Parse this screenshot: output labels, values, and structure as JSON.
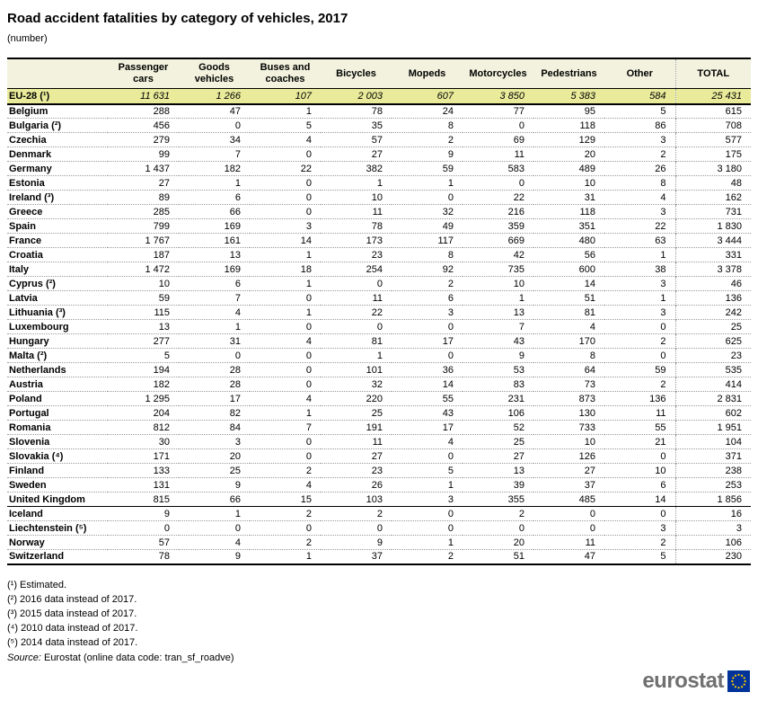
{
  "title": "Road accident fatalities by category of vehicles, 2017",
  "subtitle": "(number)",
  "colors": {
    "header_bg": "#F2F2DE",
    "aggregate_row_bg": "#E9EB9B",
    "flag_blue": "#003399",
    "star_yellow": "#FFCC00",
    "logo_gray": "#707070"
  },
  "chart_data": {
    "type": "table",
    "title": "Road accident fatalities by category of vehicles, 2017",
    "unit": "number",
    "columns": [
      "Passenger cars",
      "Goods vehicles",
      "Buses and coaches",
      "Bicycles",
      "Mopeds",
      "Motorcycles",
      "Pedestrians",
      "Other",
      "TOTAL"
    ],
    "aggregate": {
      "label": "EU-28 (¹)",
      "values": [
        11631,
        1266,
        107,
        2003,
        607,
        3850,
        5383,
        584,
        25431
      ]
    },
    "rows": [
      {
        "label": "Belgium",
        "efta": false,
        "values": [
          288,
          47,
          1,
          78,
          24,
          77,
          95,
          5,
          615
        ]
      },
      {
        "label": "Bulgaria (²)",
        "efta": false,
        "values": [
          456,
          0,
          5,
          35,
          8,
          0,
          118,
          86,
          708
        ]
      },
      {
        "label": "Czechia",
        "efta": false,
        "values": [
          279,
          34,
          4,
          57,
          2,
          69,
          129,
          3,
          577
        ]
      },
      {
        "label": "Denmark",
        "efta": false,
        "values": [
          99,
          7,
          0,
          27,
          9,
          11,
          20,
          2,
          175
        ]
      },
      {
        "label": "Germany",
        "efta": false,
        "values": [
          1437,
          182,
          22,
          382,
          59,
          583,
          489,
          26,
          3180
        ]
      },
      {
        "label": "Estonia",
        "efta": false,
        "values": [
          27,
          1,
          0,
          1,
          1,
          0,
          10,
          8,
          48
        ]
      },
      {
        "label": "Ireland (³)",
        "efta": false,
        "values": [
          89,
          6,
          0,
          10,
          0,
          22,
          31,
          4,
          162
        ]
      },
      {
        "label": "Greece",
        "efta": false,
        "values": [
          285,
          66,
          0,
          11,
          32,
          216,
          118,
          3,
          731
        ]
      },
      {
        "label": "Spain",
        "efta": false,
        "values": [
          799,
          169,
          3,
          78,
          49,
          359,
          351,
          22,
          1830
        ]
      },
      {
        "label": "France",
        "efta": false,
        "values": [
          1767,
          161,
          14,
          173,
          117,
          669,
          480,
          63,
          3444
        ]
      },
      {
        "label": "Croatia",
        "efta": false,
        "values": [
          187,
          13,
          1,
          23,
          8,
          42,
          56,
          1,
          331
        ]
      },
      {
        "label": "Italy",
        "efta": false,
        "values": [
          1472,
          169,
          18,
          254,
          92,
          735,
          600,
          38,
          3378
        ]
      },
      {
        "label": "Cyprus (²)",
        "efta": false,
        "values": [
          10,
          6,
          1,
          0,
          2,
          10,
          14,
          3,
          46
        ]
      },
      {
        "label": "Latvia",
        "efta": false,
        "values": [
          59,
          7,
          0,
          11,
          6,
          1,
          51,
          1,
          136
        ]
      },
      {
        "label": "Lithuania (³)",
        "efta": false,
        "values": [
          115,
          4,
          1,
          22,
          3,
          13,
          81,
          3,
          242
        ]
      },
      {
        "label": "Luxembourg",
        "efta": false,
        "values": [
          13,
          1,
          0,
          0,
          0,
          7,
          4,
          0,
          25
        ]
      },
      {
        "label": "Hungary",
        "efta": false,
        "values": [
          277,
          31,
          4,
          81,
          17,
          43,
          170,
          2,
          625
        ]
      },
      {
        "label": "Malta (²)",
        "efta": false,
        "values": [
          5,
          0,
          0,
          1,
          0,
          9,
          8,
          0,
          23
        ]
      },
      {
        "label": "Netherlands",
        "efta": false,
        "values": [
          194,
          28,
          0,
          101,
          36,
          53,
          64,
          59,
          535
        ]
      },
      {
        "label": "Austria",
        "efta": false,
        "values": [
          182,
          28,
          0,
          32,
          14,
          83,
          73,
          2,
          414
        ]
      },
      {
        "label": "Poland",
        "efta": false,
        "values": [
          1295,
          17,
          4,
          220,
          55,
          231,
          873,
          136,
          2831
        ]
      },
      {
        "label": "Portugal",
        "efta": false,
        "values": [
          204,
          82,
          1,
          25,
          43,
          106,
          130,
          11,
          602
        ]
      },
      {
        "label": "Romania",
        "efta": false,
        "values": [
          812,
          84,
          7,
          191,
          17,
          52,
          733,
          55,
          1951
        ]
      },
      {
        "label": "Slovenia",
        "efta": false,
        "values": [
          30,
          3,
          0,
          11,
          4,
          25,
          10,
          21,
          104
        ]
      },
      {
        "label": "Slovakia (⁴)",
        "efta": false,
        "values": [
          171,
          20,
          0,
          27,
          0,
          27,
          126,
          0,
          371
        ]
      },
      {
        "label": "Finland",
        "efta": false,
        "values": [
          133,
          25,
          2,
          23,
          5,
          13,
          27,
          10,
          238
        ]
      },
      {
        "label": "Sweden",
        "efta": false,
        "values": [
          131,
          9,
          4,
          26,
          1,
          39,
          37,
          6,
          253
        ]
      },
      {
        "label": "United Kingdom",
        "efta": false,
        "values": [
          815,
          66,
          15,
          103,
          3,
          355,
          485,
          14,
          1856
        ]
      },
      {
        "label": "Iceland",
        "efta": true,
        "values": [
          9,
          1,
          2,
          2,
          0,
          2,
          0,
          0,
          16
        ]
      },
      {
        "label": "Liechtenstein (⁵)",
        "efta": true,
        "values": [
          0,
          0,
          0,
          0,
          0,
          0,
          0,
          3,
          3
        ]
      },
      {
        "label": "Norway",
        "efta": true,
        "values": [
          57,
          4,
          2,
          9,
          1,
          20,
          11,
          2,
          106
        ]
      },
      {
        "label": "Switzerland",
        "efta": true,
        "values": [
          78,
          9,
          1,
          37,
          2,
          51,
          47,
          5,
          230
        ]
      }
    ]
  },
  "footnotes": [
    "(¹) Estimated.",
    "(²) 2016 data instead of 2017.",
    "(³) 2015 data instead of 2017.",
    "(⁴) 2010 data instead of 2017.",
    "(⁵) 2014 data instead of 2017."
  ],
  "source": {
    "label": "Source:",
    "text": " Eurostat (online data code: tran_sf_roadve)"
  },
  "logo": {
    "text": "eurostat"
  }
}
